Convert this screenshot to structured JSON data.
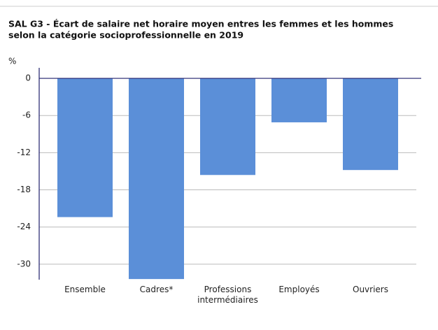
{
  "chart_data": {
    "type": "bar",
    "title": [
      "SAL G3 - Écart de salaire net horaire moyen entres les femmes et les hommes",
      "selon la catégorie socioprofessionnelle en 2019"
    ],
    "y_label": "%",
    "categories": [
      "Ensemble",
      "Cadres*",
      "Professions intermédiaires",
      "Employés",
      "Ouvriers"
    ],
    "values": [
      -22.4,
      -32.4,
      -15.6,
      -7.1,
      -14.8
    ],
    "color": "#5b8fd8",
    "ylim": [
      -32.5,
      1.7
    ],
    "yticks": [
      0,
      -6,
      -12,
      -18,
      -24,
      -30
    ],
    "grid": true
  }
}
